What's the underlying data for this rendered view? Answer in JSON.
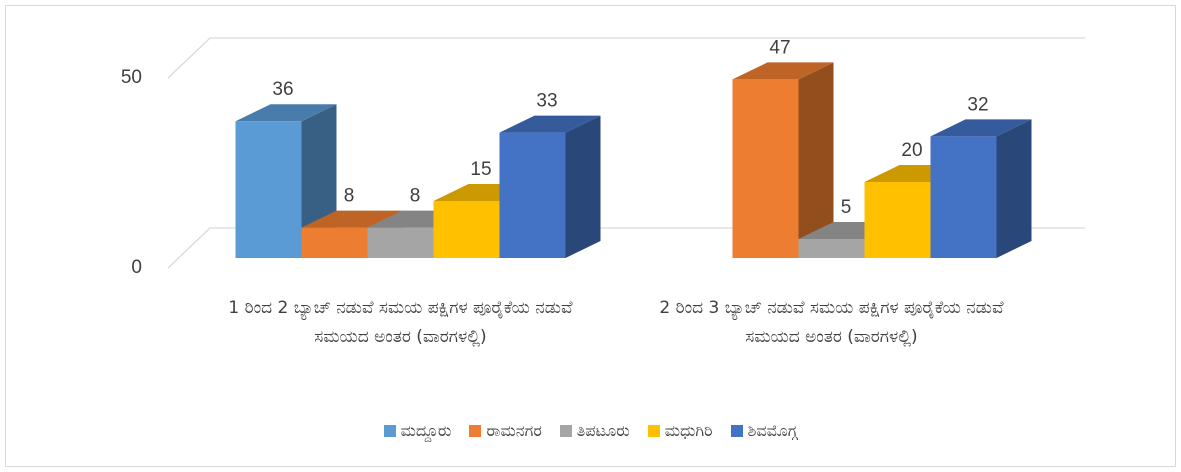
{
  "chart_data": {
    "type": "bar3d",
    "categories": [
      "1 ರಿಂದ 2 ಬ್ಯಾಚ್ ನಡುವೆ ಸಮಯ ಪಕ್ಷಿಗಳ ಪೂರೈಕೆಯ ನಡುವೆ ಸಮಯದ ಅಂತರ (ವಾರಗಳಲ್ಲಿ)",
      "2 ರಿಂದ 3 ಬ್ಯಾಚ್ ನಡುವೆ ಸಮಯ ಪಕ್ಷಿಗಳ ಪೂರೈಕೆಯ ನಡುವೆ ಸಮಯದ ಅಂತರ (ವಾರಗಳಲ್ಲಿ)"
    ],
    "series": [
      {
        "name": "ಮದ್ದೂರು",
        "color": "#5b9bd5",
        "values": [
          36,
          null
        ]
      },
      {
        "name": "ರಾಮನಗರ",
        "color": "#ed7d31",
        "values": [
          8,
          47
        ]
      },
      {
        "name": "ತಿಪಟೂರು",
        "color": "#a5a5a5",
        "values": [
          8,
          5
        ]
      },
      {
        "name": "ಮಧುಗಿರಿ",
        "color": "#ffc000",
        "values": [
          15,
          20
        ]
      },
      {
        "name": "ಶಿವಮೊಗ್ಗ",
        "color": "#4472c4",
        "values": [
          33,
          32
        ]
      }
    ],
    "ylim": [
      0,
      50
    ],
    "yticks": [
      0,
      50
    ],
    "grid": true,
    "legend": "bottom"
  }
}
